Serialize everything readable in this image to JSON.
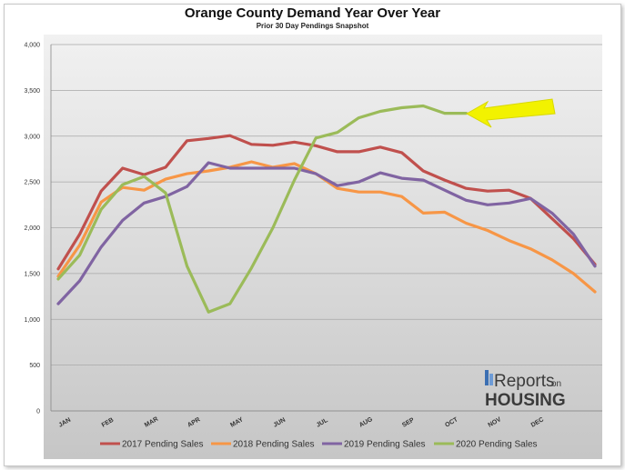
{
  "chart_data": {
    "type": "line",
    "title": "Orange County Demand Year Over Year",
    "subtitle": "Prior 30 Day Pendings Snapshot",
    "xlabel": "",
    "ylabel": "",
    "ylim": [
      0,
      4000
    ],
    "yticks": [
      "0",
      "500",
      "1,000",
      "1,500",
      "2,000",
      "2,500",
      "3,000",
      "3,500",
      "4,000"
    ],
    "xticks": [
      "JAN",
      "FEB",
      "MAR",
      "APR",
      "MAY",
      "JUN",
      "JUL",
      "AUG",
      "SEP",
      "OCT",
      "NOV",
      "DEC"
    ],
    "x_points_per_month": 2,
    "grid": true,
    "legend_position": "bottom",
    "series": [
      {
        "name": "2017 Pending Sales",
        "color": "#c0504d",
        "values": [
          1550,
          1930,
          2400,
          2650,
          2580,
          2660,
          2950,
          2975,
          3005,
          2910,
          2900,
          2935,
          2895,
          2830,
          2830,
          2880,
          2820,
          2620,
          2520,
          2430,
          2400,
          2410,
          2320,
          2100,
          1880,
          1600
        ]
      },
      {
        "name": "2018 Pending Sales",
        "color": "#f79646",
        "values": [
          1470,
          1810,
          2280,
          2440,
          2410,
          2530,
          2590,
          2620,
          2660,
          2720,
          2660,
          2700,
          2590,
          2430,
          2390,
          2390,
          2340,
          2160,
          2170,
          2050,
          1970,
          1860,
          1770,
          1650,
          1500,
          1300
        ]
      },
      {
        "name": "2019 Pending Sales",
        "color": "#8064a2",
        "values": [
          1170,
          1420,
          1790,
          2080,
          2270,
          2340,
          2450,
          2710,
          2650,
          2650,
          2650,
          2650,
          2590,
          2460,
          2500,
          2600,
          2540,
          2520,
          2410,
          2300,
          2250,
          2270,
          2320,
          2160,
          1930,
          1580
        ]
      },
      {
        "name": "2020 Pending Sales",
        "color": "#9bbb59",
        "values": [
          1440,
          1700,
          2200,
          2470,
          2560,
          2380,
          1580,
          1080,
          1170,
          1560,
          2000,
          2520,
          2980,
          3040,
          3200,
          3270,
          3310,
          3330,
          3250,
          3250
        ]
      }
    ]
  },
  "logo": {
    "line1_big": "Reports",
    "line1_small": "on",
    "line2": "HOUSING"
  },
  "arrow_color": "#f2f200"
}
